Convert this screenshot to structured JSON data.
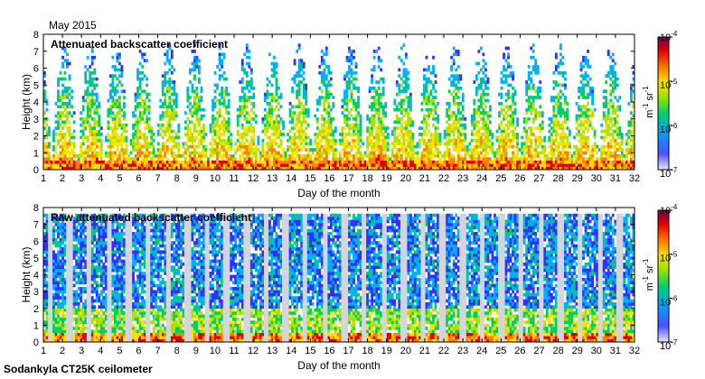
{
  "header": {
    "period": "May 2015"
  },
  "footer": {
    "instrument": "Sodankyla CT25K ceilometer"
  },
  "chart_data": [
    {
      "type": "heatmap",
      "title": "Attenuated backscatter coefficient",
      "xlabel": "Day of the month",
      "ylabel": "Height (km)",
      "xlim": [
        1,
        32
      ],
      "ylim": [
        0,
        8
      ],
      "x_ticks": [
        "1",
        "2",
        "3",
        "4",
        "5",
        "6",
        "7",
        "8",
        "9",
        "10",
        "11",
        "12",
        "13",
        "14",
        "15",
        "16",
        "17",
        "18",
        "19",
        "20",
        "21",
        "22",
        "23",
        "24",
        "25",
        "26",
        "27",
        "28",
        "29",
        "30",
        "31",
        "32"
      ],
      "y_ticks": [
        "0",
        "1",
        "2",
        "3",
        "4",
        "5",
        "6",
        "7",
        "8"
      ],
      "colorbar": {
        "scale": "log",
        "range": [
          1e-07,
          0.0001
        ],
        "ticks": [
          "10",
          "10",
          "10",
          "10"
        ],
        "tick_exponents": [
          "-7",
          "-6",
          "-5",
          "-4"
        ],
        "unit": "m",
        "unit_exponent_1": "-1",
        "unit_2": "sr",
        "unit_exponent_2": "-1"
      }
    },
    {
      "type": "heatmap",
      "title": "Raw attenuated backscatter coefficient",
      "xlabel": "Day of the month",
      "ylabel": "Height (km)",
      "xlim": [
        1,
        32
      ],
      "ylim": [
        0,
        8
      ],
      "x_ticks": [
        "1",
        "2",
        "3",
        "4",
        "5",
        "6",
        "7",
        "8",
        "9",
        "10",
        "11",
        "12",
        "13",
        "14",
        "15",
        "16",
        "17",
        "18",
        "19",
        "20",
        "21",
        "22",
        "23",
        "24",
        "25",
        "26",
        "27",
        "28",
        "29",
        "30",
        "31",
        "32"
      ],
      "y_ticks": [
        "0",
        "1",
        "2",
        "3",
        "4",
        "5",
        "6",
        "7",
        "8"
      ],
      "colorbar": {
        "scale": "log",
        "range": [
          1e-07,
          0.0001
        ],
        "ticks": [
          "10",
          "10",
          "10",
          "10"
        ],
        "tick_exponents": [
          "-7",
          "-6",
          "-5",
          "-4"
        ],
        "unit": "m",
        "unit_exponent_1": "-1",
        "unit_2": "sr",
        "unit_exponent_2": "-1"
      }
    }
  ],
  "colors": {
    "colormap": [
      "#e0e0ee",
      "#3030ff",
      "#00b0ff",
      "#00d060",
      "#b0e000",
      "#ffe000",
      "#ff8000",
      "#e00000",
      "#800040"
    ],
    "missing": "#d4d4dc",
    "axis": "#000000"
  }
}
